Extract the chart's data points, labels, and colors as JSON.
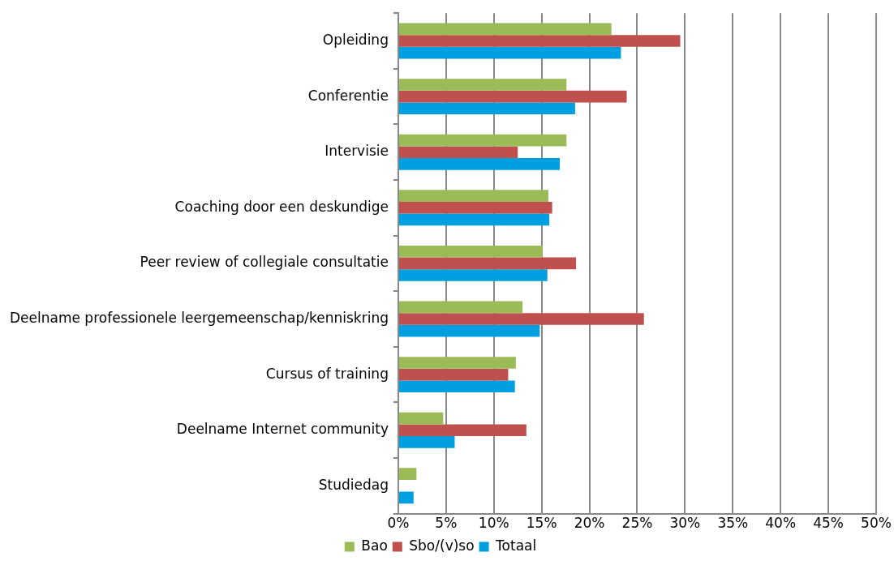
{
  "chart_data": {
    "type": "bar",
    "orientation": "horizontal",
    "categories": [
      "Opleiding",
      "Conferentie",
      "Intervisie",
      "Coaching door een deskundige",
      "Peer review of collegiale consultatie",
      "Deelname professionele leergemeenschap/kenniskring",
      "Cursus of training",
      "Deelname Internet community",
      "Studiedag"
    ],
    "series": [
      {
        "name": "Bao",
        "color": "#9bbb59",
        "values": [
          22.3,
          17.6,
          17.6,
          15.7,
          15.1,
          13.0,
          12.3,
          4.7,
          1.9
        ]
      },
      {
        "name": "Sbo/(v)so",
        "color": "#c0504d",
        "values": [
          29.5,
          23.9,
          12.5,
          16.1,
          18.6,
          25.7,
          11.5,
          13.4,
          0
        ]
      },
      {
        "name": "Totaal",
        "color": "#009fdf",
        "values": [
          23.3,
          18.5,
          16.9,
          15.8,
          15.6,
          14.8,
          12.2,
          5.9,
          1.6
        ]
      }
    ],
    "xlim": [
      0,
      50
    ],
    "xticks": [
      {
        "value": 0,
        "label": "0%"
      },
      {
        "value": 5,
        "label": "5%"
      },
      {
        "value": 10,
        "label": "10%"
      },
      {
        "value": 15,
        "label": "15%"
      },
      {
        "value": 20,
        "label": "20%"
      },
      {
        "value": 25,
        "label": "25%"
      },
      {
        "value": 30,
        "label": "30%"
      },
      {
        "value": 35,
        "label": "35%"
      },
      {
        "value": 40,
        "label": "40%"
      },
      {
        "value": 45,
        "label": "45%"
      },
      {
        "value": 50,
        "label": "50%"
      }
    ],
    "grid": "x",
    "legend": "bottom"
  }
}
